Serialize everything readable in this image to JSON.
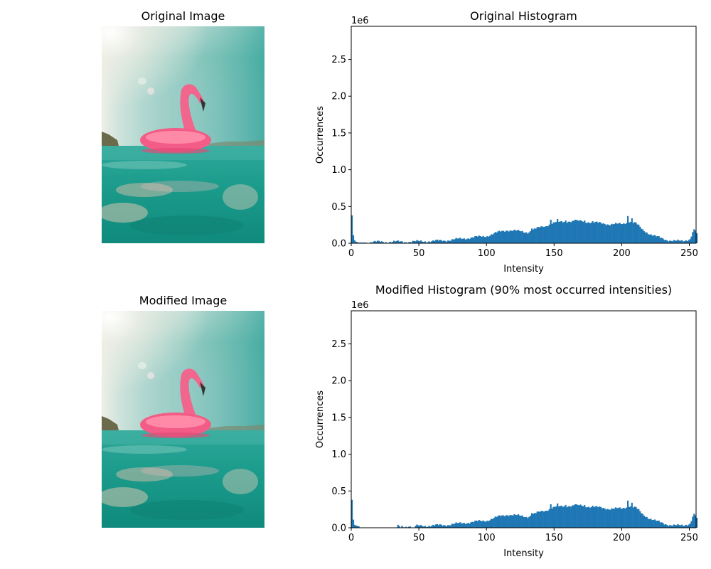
{
  "figure": {
    "panels": [
      {
        "kind": "image",
        "title": "Original Image",
        "image_ref": "flamingo-photo"
      },
      {
        "kind": "hist",
        "title": "Original Histogram",
        "chart_ref": 0
      },
      {
        "kind": "image",
        "title": "Modified Image",
        "image_ref": "flamingo-photo"
      },
      {
        "kind": "hist",
        "title": "Modified Histogram (90% most occurred intensities)",
        "chart_ref": 1
      }
    ]
  },
  "colors": {
    "bar": "#1f77b4",
    "axis": "#000000",
    "background": "#ffffff"
  },
  "chart_data": [
    {
      "type": "bar",
      "title": "Original Histogram",
      "xlabel": "Intensity",
      "ylabel": "Occurrences",
      "offset_label": "1e6",
      "xlim": [
        0,
        255
      ],
      "ylim": [
        0,
        2.95
      ],
      "xticks": [
        0,
        50,
        100,
        150,
        200,
        250
      ],
      "yticks": [
        0.0,
        0.5,
        1.0,
        1.5,
        2.0,
        2.5
      ],
      "ytick_labels": [
        "0.0",
        "0.5",
        "1.0",
        "1.5",
        "2.0",
        "2.5"
      ],
      "grid": false,
      "bins": 256,
      "anchors": [
        [
          0,
          0.38
        ],
        [
          1,
          0.12
        ],
        [
          2,
          0.04
        ],
        [
          3,
          0.02
        ],
        [
          5,
          0.01
        ],
        [
          10,
          0.01
        ],
        [
          20,
          0.02
        ],
        [
          30,
          0.02
        ],
        [
          40,
          0.02
        ],
        [
          50,
          0.025
        ],
        [
          60,
          0.03
        ],
        [
          70,
          0.04
        ],
        [
          80,
          0.06
        ],
        [
          90,
          0.08
        ],
        [
          100,
          0.1
        ],
        [
          105,
          0.13
        ],
        [
          110,
          0.16
        ],
        [
          115,
          0.18
        ],
        [
          120,
          0.17
        ],
        [
          125,
          0.16
        ],
        [
          130,
          0.15
        ],
        [
          135,
          0.19
        ],
        [
          140,
          0.22
        ],
        [
          145,
          0.25
        ],
        [
          150,
          0.28
        ],
        [
          155,
          0.29
        ],
        [
          160,
          0.3
        ],
        [
          165,
          0.3
        ],
        [
          170,
          0.3
        ],
        [
          175,
          0.29
        ],
        [
          180,
          0.28
        ],
        [
          185,
          0.27
        ],
        [
          190,
          0.26
        ],
        [
          195,
          0.26
        ],
        [
          200,
          0.26
        ],
        [
          205,
          0.3
        ],
        [
          210,
          0.27
        ],
        [
          215,
          0.18
        ],
        [
          220,
          0.13
        ],
        [
          225,
          0.09
        ],
        [
          230,
          0.06
        ],
        [
          235,
          0.04
        ],
        [
          240,
          0.03
        ],
        [
          245,
          0.03
        ],
        [
          250,
          0.06
        ],
        [
          252,
          0.15
        ],
        [
          254,
          0.2
        ],
        [
          255,
          0.12
        ]
      ],
      "spikes": [
        [
          0,
          0.38
        ],
        [
          1,
          0.11
        ],
        [
          133,
          0.2
        ],
        [
          143,
          0.23
        ],
        [
          147,
          0.32
        ],
        [
          152,
          0.33
        ],
        [
          158,
          0.31
        ],
        [
          165,
          0.32
        ],
        [
          172,
          0.31
        ],
        [
          178,
          0.3
        ],
        [
          204,
          0.37
        ],
        [
          207,
          0.34
        ],
        [
          253,
          0.19
        ],
        [
          254,
          0.17
        ]
      ],
      "zero_bins": []
    },
    {
      "type": "bar",
      "title": "Modified Histogram (90% most occurred intensities)",
      "xlabel": "Intensity",
      "ylabel": "Occurrences",
      "offset_label": "1e6",
      "xlim": [
        0,
        255
      ],
      "ylim": [
        0,
        2.95
      ],
      "xticks": [
        0,
        50,
        100,
        150,
        200,
        250
      ],
      "yticks": [
        0.0,
        0.5,
        1.0,
        1.5,
        2.0,
        2.5
      ],
      "ytick_labels": [
        "0.0",
        "0.5",
        "1.0",
        "1.5",
        "2.0",
        "2.5"
      ],
      "grid": false,
      "bins": 256,
      "anchors": [
        [
          0,
          0.38
        ],
        [
          1,
          0.12
        ],
        [
          2,
          0.04
        ],
        [
          3,
          0.03
        ],
        [
          5,
          0.02
        ],
        [
          10,
          0.01
        ],
        [
          20,
          0.02
        ],
        [
          30,
          0.02
        ],
        [
          40,
          0.02
        ],
        [
          50,
          0.025
        ],
        [
          60,
          0.03
        ],
        [
          70,
          0.04
        ],
        [
          80,
          0.06
        ],
        [
          90,
          0.08
        ],
        [
          100,
          0.1
        ],
        [
          105,
          0.13
        ],
        [
          110,
          0.16
        ],
        [
          115,
          0.18
        ],
        [
          120,
          0.17
        ],
        [
          125,
          0.16
        ],
        [
          130,
          0.15
        ],
        [
          135,
          0.19
        ],
        [
          140,
          0.22
        ],
        [
          145,
          0.25
        ],
        [
          150,
          0.28
        ],
        [
          155,
          0.29
        ],
        [
          160,
          0.3
        ],
        [
          165,
          0.3
        ],
        [
          170,
          0.3
        ],
        [
          175,
          0.29
        ],
        [
          180,
          0.28
        ],
        [
          185,
          0.27
        ],
        [
          190,
          0.26
        ],
        [
          195,
          0.26
        ],
        [
          200,
          0.26
        ],
        [
          205,
          0.3
        ],
        [
          210,
          0.27
        ],
        [
          215,
          0.18
        ],
        [
          220,
          0.13
        ],
        [
          225,
          0.09
        ],
        [
          230,
          0.06
        ],
        [
          235,
          0.04
        ],
        [
          240,
          0.03
        ],
        [
          245,
          0.03
        ],
        [
          250,
          0.06
        ],
        [
          252,
          0.15
        ],
        [
          254,
          0.2
        ],
        [
          255,
          0.12
        ]
      ],
      "spikes": [
        [
          0,
          0.38
        ],
        [
          1,
          0.11
        ],
        [
          133,
          0.2
        ],
        [
          143,
          0.23
        ],
        [
          147,
          0.32
        ],
        [
          152,
          0.33
        ],
        [
          158,
          0.31
        ],
        [
          165,
          0.32
        ],
        [
          172,
          0.31
        ],
        [
          178,
          0.3
        ],
        [
          204,
          0.37
        ],
        [
          207,
          0.34
        ],
        [
          253,
          0.19
        ],
        [
          254,
          0.17
        ]
      ],
      "zero_bins": [
        [
          6,
          33
        ],
        [
          36,
          36
        ],
        [
          39,
          39
        ],
        [
          44,
          46
        ]
      ]
    }
  ]
}
